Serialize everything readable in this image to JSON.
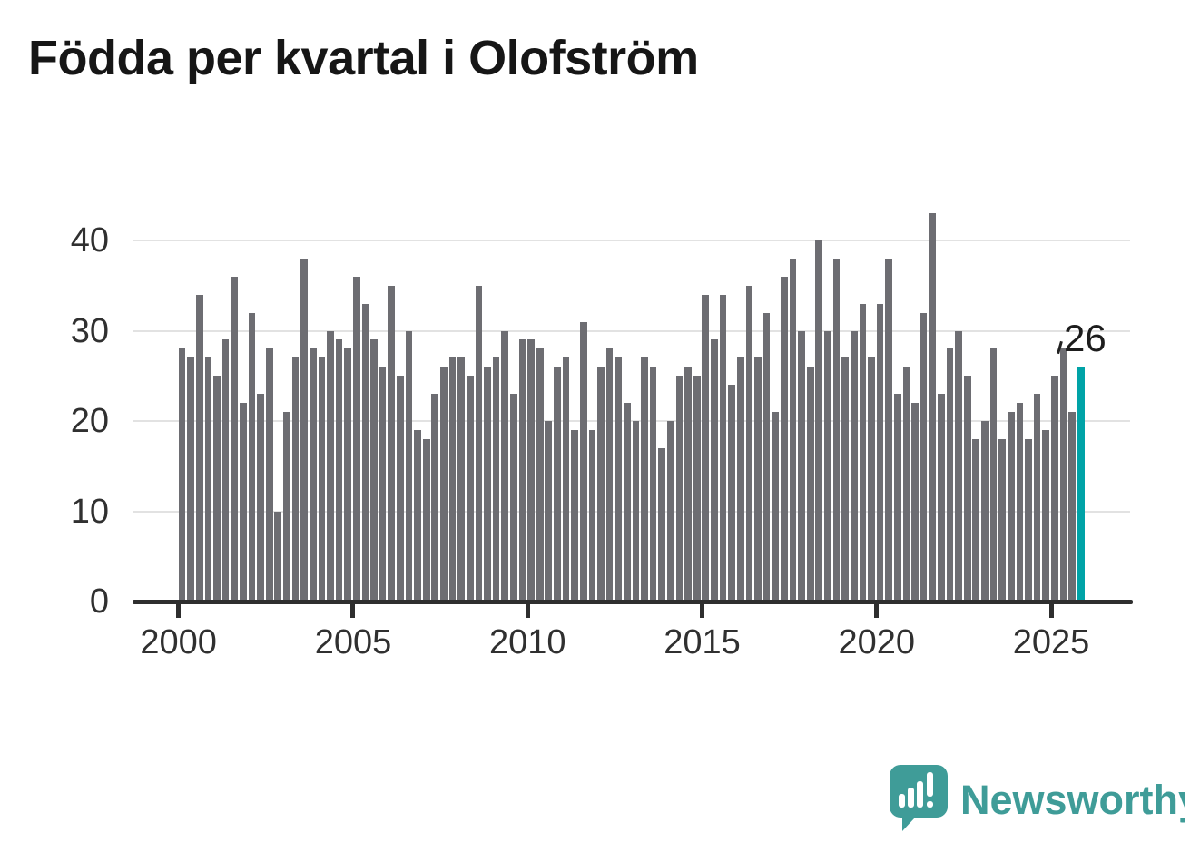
{
  "title": "Födda per kvartal i Olofström",
  "chart_data": {
    "type": "bar",
    "title": "Födda per kvartal i Olofström",
    "frequency": "quarterly",
    "start_period": "2000-Q1",
    "end_period": "2025-Q4",
    "values": [
      28,
      27,
      34,
      27,
      25,
      29,
      36,
      22,
      32,
      23,
      28,
      10,
      21,
      27,
      38,
      28,
      27,
      30,
      29,
      28,
      36,
      33,
      29,
      26,
      35,
      25,
      30,
      19,
      18,
      23,
      26,
      27,
      27,
      25,
      35,
      26,
      27,
      30,
      23,
      29,
      29,
      28,
      20,
      26,
      27,
      19,
      31,
      19,
      26,
      28,
      27,
      22,
      20,
      27,
      26,
      17,
      20,
      25,
      26,
      25,
      34,
      29,
      34,
      24,
      27,
      35,
      27,
      32,
      21,
      36,
      38,
      30,
      26,
      40,
      30,
      38,
      27,
      30,
      33,
      27,
      33,
      38,
      23,
      26,
      22,
      32,
      43,
      23,
      28,
      30,
      25,
      18,
      20,
      28,
      18,
      21,
      22,
      18,
      23,
      19,
      25,
      28,
      21,
      26
    ],
    "highlight": {
      "index": 103,
      "label": "26",
      "color": "#00a3a7"
    },
    "bar_color": "#6d6d72",
    "x_tick_labels": [
      "2000",
      "2005",
      "2010",
      "2015",
      "2020",
      "2025"
    ],
    "y_tick_labels": [
      "0",
      "10",
      "20",
      "30",
      "40"
    ],
    "y_ticks": [
      0,
      10,
      20,
      30,
      40
    ],
    "ylim": [
      0,
      43.5
    ],
    "grid": "horizontal",
    "grid_color": "#e2e2e2",
    "axis_color": "#2e2e2e",
    "label_color": "#303030",
    "title_color": "#161616",
    "legend": "none"
  },
  "logo": {
    "text": "Newsworthy",
    "color": "#3f9c98",
    "icon": "speech-bubble-bar-chart-icon"
  }
}
